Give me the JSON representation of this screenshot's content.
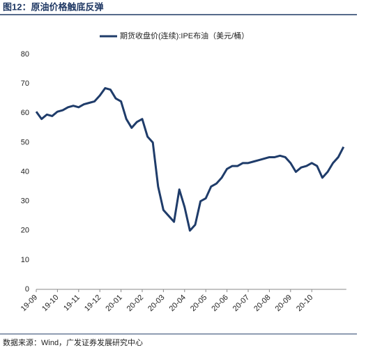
{
  "chart_data": {
    "type": "line",
    "title": "图12：原油价格触底反弹",
    "source": "数据来源：Wind，广发证券发展研究中心",
    "categories": [
      "19-09",
      null,
      null,
      null,
      "19-10",
      null,
      null,
      null,
      "19-11",
      null,
      null,
      null,
      "19-12",
      null,
      null,
      null,
      "20-01",
      null,
      null,
      null,
      "20-02",
      null,
      null,
      null,
      "20-03",
      null,
      null,
      null,
      "20-04",
      null,
      null,
      null,
      "20-05",
      null,
      null,
      null,
      "20-06",
      null,
      null,
      null,
      "20-07",
      null,
      null,
      null,
      "20-08",
      null,
      null,
      null,
      "20-09",
      null,
      null,
      null,
      "20-10",
      null,
      null,
      null,
      null,
      null,
      null
    ],
    "series": [
      {
        "name": "期货收盘价(连续):IPE布油（美元/桶）",
        "color": "#1f3c6a",
        "values": [
          60.5,
          58,
          59.5,
          59,
          60.5,
          61,
          62,
          62.5,
          62,
          63,
          63.5,
          64,
          66,
          68.5,
          68,
          65,
          64,
          58,
          55,
          57,
          58,
          52,
          50,
          35,
          27,
          25,
          23,
          34,
          28,
          20,
          22,
          30,
          31,
          35,
          36,
          38,
          41,
          42,
          42,
          43,
          43,
          43.5,
          44,
          44.5,
          45,
          45,
          45.5,
          45,
          43,
          40,
          41.5,
          42,
          43,
          42,
          38,
          40,
          43,
          45,
          48.5
        ]
      }
    ],
    "ylim": [
      0,
      80
    ],
    "yticks": [
      0,
      10,
      20,
      30,
      40,
      50,
      60,
      70,
      80
    ]
  }
}
